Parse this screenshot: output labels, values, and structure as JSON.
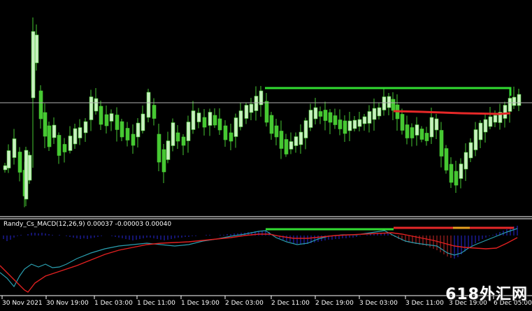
{
  "colors": {
    "background": "#000000",
    "frame": "#ffffff",
    "bull_candle": "#c8f0c0",
    "bear_candle": "#46c832",
    "wick": "#46c832",
    "level_green": "#32dc32",
    "level_red": "#e62828",
    "price_line": "#b0b0b0",
    "hist_blue": "#2828dc",
    "hist_red": "#c82828",
    "main_line": "#2a9fb0",
    "signal_line": "#e02020"
  },
  "indicator": {
    "label": "Randy_Cs_MACD(12,26,9) 0.00037 -0.00003 0.00040"
  },
  "time_axis": {
    "labels": [
      "30 Nov 2021",
      "30 Nov 19:00",
      "1 Dec 03:00",
      "1 Dec 11:00",
      "1 Dec 19:00",
      "2 Dec 03:00",
      "2 Dec 11:00",
      "2 Dec 19:00",
      "3 Dec 03:00",
      "3 Dec 11:00",
      "3 Dec 19:00",
      "6 Dec 05:00"
    ]
  },
  "watermark": {
    "text": "618外汇网"
  }
}
